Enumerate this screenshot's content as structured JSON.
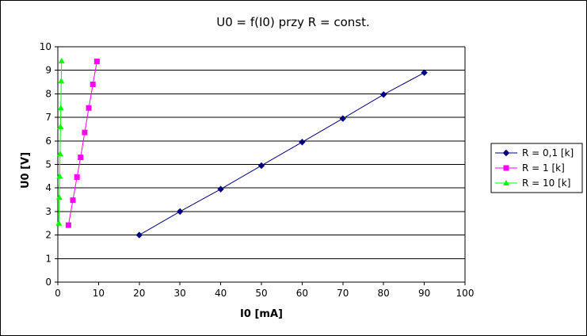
{
  "chart_data": {
    "type": "scatter",
    "title": "U0 = f(I0) przy R = const.",
    "xlabel": "I0 [mA]",
    "ylabel": "U0 [V]",
    "xlim": [
      0,
      100
    ],
    "ylim": [
      0,
      10
    ],
    "x_ticks": [
      0,
      10,
      20,
      30,
      40,
      50,
      60,
      70,
      80,
      90,
      100
    ],
    "y_ticks": [
      0,
      1,
      2,
      3,
      4,
      5,
      6,
      7,
      8,
      9,
      10
    ],
    "grid": "horizontal",
    "legend_position": "right",
    "series": [
      {
        "name": "R = 0,1 [k]",
        "color": "#000080",
        "marker": "diamond",
        "x": [
          20,
          30,
          40,
          50,
          60,
          70,
          80,
          90
        ],
        "y": [
          2.0,
          3.0,
          3.95,
          4.95,
          5.95,
          6.95,
          7.97,
          8.9
        ]
      },
      {
        "name": "R = 1 [k]",
        "color": "#ff00ff",
        "marker": "square",
        "x": [
          2.6,
          3.7,
          4.7,
          5.6,
          6.6,
          7.6,
          8.6,
          9.6
        ],
        "y": [
          2.42,
          3.48,
          4.46,
          5.3,
          6.36,
          7.4,
          8.4,
          9.38
        ]
      },
      {
        "name": "R = 10 [k]",
        "color": "#00ff00",
        "marker": "triangle",
        "x": [
          0.24,
          0.36,
          0.45,
          0.55,
          0.65,
          0.74,
          0.84,
          0.93
        ],
        "y": [
          2.5,
          3.6,
          4.5,
          5.45,
          6.6,
          7.4,
          8.55,
          9.4
        ]
      }
    ]
  }
}
